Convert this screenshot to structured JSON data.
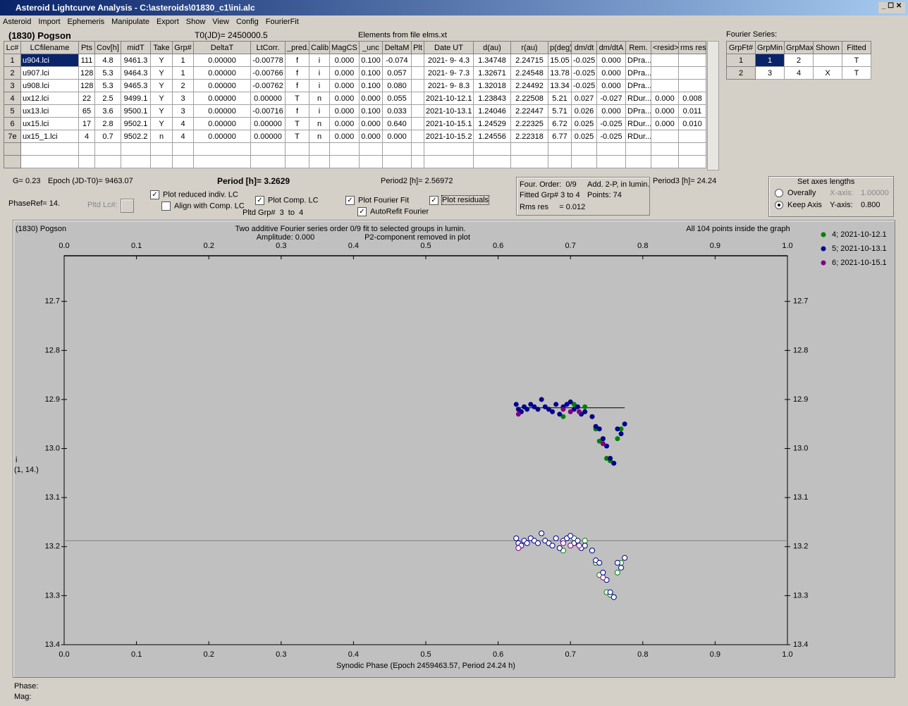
{
  "window": {
    "title": "Asteroid Lightcurve Analysis - C:\\asteroids\\01830_c1\\ini.alc",
    "menu": [
      "Asteroid",
      "Import",
      "Ephemeris",
      "Manipulate",
      "Export",
      "Show",
      "View",
      "Config",
      "FourierFit"
    ]
  },
  "header": {
    "asteroid": "(1830) Pogson",
    "t0": "T0(JD)= 2450000.5",
    "elements": "Elements from file elms.xt"
  },
  "table": {
    "columns": [
      "Lc#",
      "LCfilename",
      "Pts",
      "Cov[h]",
      "midT",
      "Take",
      "Grp#",
      "DeltaT",
      "LtCorr.",
      "_pred.",
      "Calib.",
      "MagCS",
      "_unc",
      "DeltaM",
      "Plt",
      "Date UT",
      "d(au)",
      "r(au)",
      "p(deg)",
      "dm/dt",
      "dm/dtA",
      "Rem.",
      "<resid>",
      "rms res"
    ],
    "rows": [
      [
        "1",
        "u904.lci",
        "111",
        "4.8",
        "9461.3",
        "Y",
        "1",
        "0.00000",
        "-0.00778",
        "f",
        "i",
        "0.000",
        "0.100",
        "-0.074",
        null,
        "2021- 9- 4.3",
        "1.34748",
        "2.24715",
        "15.05",
        "-0.025",
        "0.000",
        "DPra...",
        null,
        null
      ],
      [
        "2",
        "u907.lci",
        "128",
        "5.3",
        "9464.3",
        "Y",
        "1",
        "0.00000",
        "-0.00766",
        "f",
        "i",
        "0.000",
        "0.100",
        "0.057",
        null,
        "2021- 9- 7.3",
        "1.32671",
        "2.24548",
        "13.78",
        "-0.025",
        "0.000",
        "DPra...",
        null,
        null
      ],
      [
        "3",
        "u908.lci",
        "128",
        "5.3",
        "9465.3",
        "Y",
        "2",
        "0.00000",
        "-0.00762",
        "f",
        "i",
        "0.000",
        "0.100",
        "0.080",
        null,
        "2021- 9- 8.3",
        "1.32018",
        "2.24492",
        "13.34",
        "-0.025",
        "0.000",
        "DPra...",
        null,
        null
      ],
      [
        "4",
        "ux12.lci",
        "22",
        "2.5",
        "9499.1",
        "Y",
        "3",
        "0.00000",
        "0.00000",
        "T",
        "n",
        "0.000",
        "0.000",
        "0.055",
        null,
        "2021-10-12.1",
        "1.23843",
        "2.22508",
        "5.21",
        "0.027",
        "-0.027",
        "RDur...",
        "0.000",
        "0.008"
      ],
      [
        "5",
        "ux13.lci",
        "65",
        "3.6",
        "9500.1",
        "Y",
        "3",
        "0.00000",
        "-0.00716",
        "f",
        "i",
        "0.000",
        "0.100",
        "0.033",
        null,
        "2021-10-13.1",
        "1.24046",
        "2.22447",
        "5.71",
        "0.026",
        "0.000",
        "DPra...",
        "0.000",
        "0.011"
      ],
      [
        "6",
        "ux15.lci",
        "17",
        "2.8",
        "9502.1",
        "Y",
        "4",
        "0.00000",
        "0.00000",
        "T",
        "n",
        "0.000",
        "0.000",
        "0.640",
        null,
        "2021-10-15.1",
        "1.24529",
        "2.22325",
        "6.72",
        "0.025",
        "-0.025",
        "RDur...",
        "0.000",
        "0.010"
      ],
      [
        "7e",
        "ux15_1.lci",
        "4",
        "0.7",
        "9502.2",
        "n",
        "4",
        "0.00000",
        "0.00000",
        "T",
        "n",
        "0.000",
        "0.000",
        "0.000",
        null,
        "2021-10-15.2",
        "1.24556",
        "2.22318",
        "6.77",
        "0.025",
        "-0.025",
        "RDur...",
        null,
        null
      ]
    ]
  },
  "fourier": {
    "title": "Fourier Series:",
    "columns": [
      "GrpFt#",
      "GrpMin",
      "GrpMax",
      "Shown",
      "Fitted"
    ],
    "rows": [
      [
        "1",
        "1",
        "2",
        null,
        "T"
      ],
      [
        "2",
        "3",
        "4",
        "X",
        "T"
      ]
    ]
  },
  "info": {
    "g": "G= 0.23",
    "epoch": "Epoch (JD-T0)= 9463.07",
    "period": "Period [h]= 3.2629",
    "period2": "Period2 [h]= 2.56972",
    "period3": "Period3 [h]= 24.24",
    "phase_ref": "PhaseRef= 14.",
    "pltd_lc": "Pltd Lc#:",
    "pltd_grp": "Pltd Grp#  3  to  4"
  },
  "checkboxes": [
    {
      "label": "Plot reduced indiv. LC",
      "checked": true
    },
    {
      "label": "Align with Comp. LC",
      "checked": false
    },
    {
      "label": "Plot Comp. LC",
      "checked": true
    },
    {
      "label": "Plot Fourier Fit",
      "checked": true
    },
    {
      "label": "AutoRefit Fourier",
      "checked": true
    },
    {
      "label": "Plot residuals",
      "checked": true
    }
  ],
  "fit_box": {
    "order": "Four. Order:  0/9",
    "add": "Add. 2-P, in lumin.",
    "fitted": "Fitted Grp# 3 to 4",
    "points": "Points: 74",
    "rms": "Rms res     = 0.012"
  },
  "axes_lengths": {
    "title": "Set axes lengths",
    "options": [
      {
        "label": "Overally",
        "checked": false
      },
      {
        "label": "Keep Axis",
        "checked": true
      }
    ],
    "x_label": "X-axis:",
    "x_value": "1.00000",
    "y_label": "Y-axis:",
    "y_value": "0.800"
  },
  "chart_data": {
    "type": "scatter",
    "title": "(1830) Pogson",
    "annotations": [
      "Two additive Fourier series order 0/9 fit to selected groups in lumin.",
      "Amplitude: 0.000",
      "P2-component removed in plot",
      "All 104 points inside the graph"
    ],
    "xlabel": "Synodic Phase (Epoch 2459463.57, Period 24.24 h)",
    "ylabel": "i",
    "ylabel2": "(1, 14.)",
    "xlim": [
      0,
      1
    ],
    "xticks": [
      {
        "value": 0,
        "label": "0.0"
      },
      0.1,
      0.2,
      0.3,
      0.4,
      0.5,
      0.6,
      0.7,
      0.8,
      0.9,
      {
        "value": 1,
        "label": "1.0"
      }
    ],
    "ylim": [
      12.607,
      13.4
    ],
    "y_inverted": true,
    "yticks": [
      12.7,
      12.8,
      12.9,
      {
        "value": 13,
        "label": "13.0"
      },
      13.1,
      13.2,
      13.3,
      13.4
    ],
    "legend": "right",
    "series": [
      {
        "name": "4; 2021-10-12.1",
        "color": "#008000",
        "x": [
          0.69,
          0.705,
          0.72,
          0.73,
          0.735,
          0.74,
          0.745,
          0.75,
          0.755,
          0.76,
          0.765,
          0.77
        ],
        "values": [
          12.935,
          12.91,
          12.915,
          12.935,
          12.96,
          12.985,
          12.98,
          13.02,
          13.025,
          13.03,
          12.98,
          12.96
        ],
        "residuals": [
          13.208,
          13.183,
          13.188,
          13.208,
          13.233,
          13.258,
          13.253,
          13.293,
          13.298,
          13.303,
          13.253,
          13.233
        ]
      },
      {
        "name": "5; 2021-10-13.1",
        "color": "#00008b",
        "x": [
          0.625,
          0.628,
          0.632,
          0.636,
          0.64,
          0.645,
          0.65,
          0.655,
          0.66,
          0.665,
          0.67,
          0.675,
          0.68,
          0.685,
          0.69,
          0.695,
          0.7,
          0.705,
          0.71,
          0.715,
          0.72,
          0.73,
          0.735,
          0.74,
          0.745,
          0.75,
          0.755,
          0.76,
          0.765,
          0.77,
          0.775
        ],
        "values": [
          12.91,
          12.92,
          12.925,
          12.915,
          12.92,
          12.91,
          12.915,
          12.92,
          12.9,
          12.915,
          12.92,
          12.925,
          12.91,
          12.93,
          12.915,
          12.91,
          12.905,
          12.92,
          12.915,
          12.93,
          12.925,
          12.935,
          12.955,
          12.96,
          12.98,
          12.995,
          13.02,
          13.03,
          12.96,
          12.97,
          12.95
        ],
        "residuals": [
          13.183,
          13.193,
          13.198,
          13.188,
          13.193,
          13.183,
          13.188,
          13.193,
          13.173,
          13.188,
          13.193,
          13.198,
          13.183,
          13.203,
          13.188,
          13.183,
          13.178,
          13.193,
          13.188,
          13.203,
          13.198,
          13.208,
          13.228,
          13.233,
          13.253,
          13.268,
          13.293,
          13.303,
          13.233,
          13.243,
          13.223
        ]
      },
      {
        "name": "6; 2021-10-15.1",
        "color": "#800080",
        "x": [
          0.628,
          0.69,
          0.7,
          0.712,
          0.745
        ],
        "values": [
          12.93,
          12.92,
          12.925,
          12.925,
          12.99
        ],
        "residuals": [
          13.203,
          13.193,
          13.198,
          13.198,
          13.263
        ]
      }
    ],
    "fit": {
      "x": [
        0.625,
        0.775
      ],
      "values": [
        12.917,
        12.917
      ]
    },
    "residual_baseline": 13.188
  },
  "status": {
    "phase": "Phase:",
    "mag": "Mag:"
  }
}
